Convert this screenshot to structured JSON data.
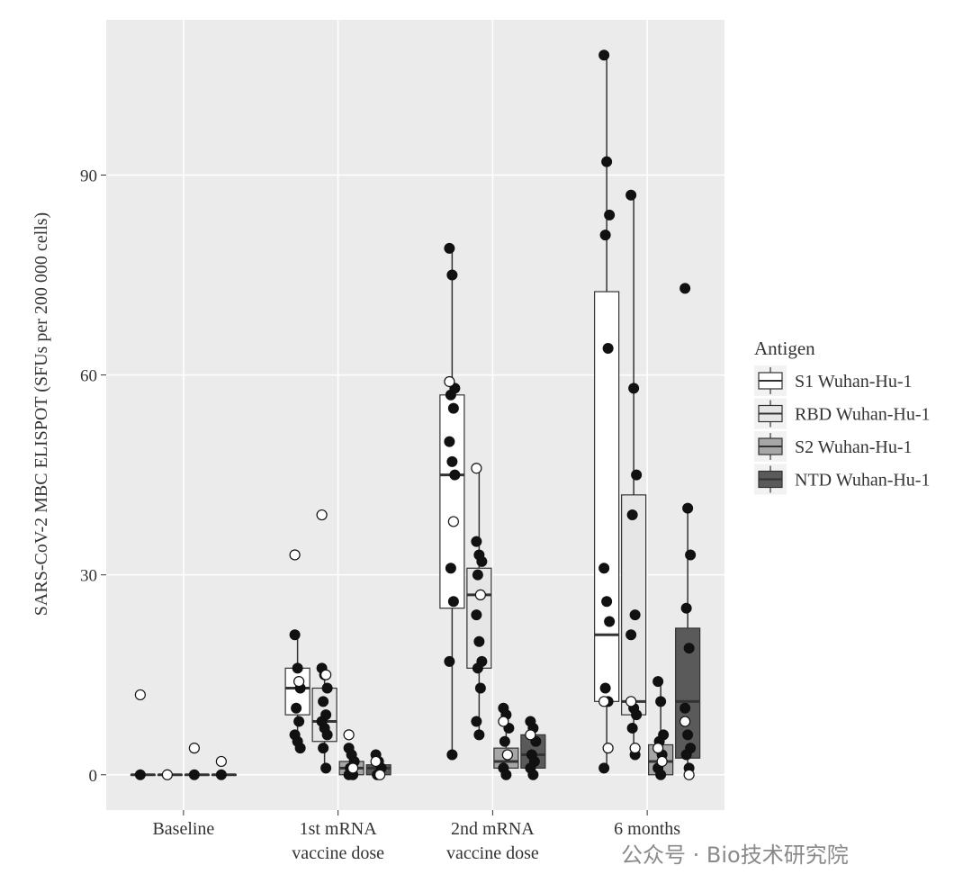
{
  "chart_data": {
    "type": "box",
    "ylabel": "SARS-CoV-2 MBC ELISPOT (SFUs per 200 000 cells)",
    "categories": [
      "Baseline",
      "1st mRNA vaccine dose",
      "2nd mRNA vaccine dose",
      "6 months"
    ],
    "ylim": [
      -5.3,
      113.3
    ],
    "yticks": [
      0,
      30,
      60,
      90
    ],
    "grid": true,
    "legend_title": "Antigen",
    "legend_position": "right",
    "series": [
      {
        "name": "S1 Wuhan-Hu-1",
        "color": "#ffffff",
        "boxes": [
          {
            "min": 0,
            "q1": 0,
            "median": 0,
            "q3": 0,
            "max": 0,
            "points": [
              0
            ],
            "open_points": [
              12
            ]
          },
          {
            "min": 4,
            "q1": 9,
            "median": 13,
            "q3": 16,
            "max": 21,
            "points": [
              21,
              16,
              13,
              10,
              8,
              6,
              5,
              4
            ],
            "open_points": [
              33,
              14
            ]
          },
          {
            "min": 3,
            "q1": 25,
            "median": 45,
            "q3": 57,
            "max": 79,
            "points": [
              79,
              75,
              58,
              57,
              55,
              50,
              47,
              45,
              31,
              26,
              17,
              3
            ],
            "open_points": [
              59,
              38
            ]
          },
          {
            "min": 1,
            "q1": 11,
            "median": 21,
            "q3": 72.5,
            "max": 108,
            "points": [
              108,
              92,
              84,
              81,
              64,
              31,
              26,
              23,
              13,
              11,
              1
            ],
            "open_points": [
              11,
              4
            ]
          }
        ]
      },
      {
        "name": "RBD Wuhan-Hu-1",
        "color": "#e6e6e6",
        "boxes": [
          {
            "min": 0,
            "q1": 0,
            "median": 0,
            "q3": 0,
            "max": 0,
            "points": [],
            "open_points": [
              0
            ]
          },
          {
            "min": 1,
            "q1": 5,
            "median": 8,
            "q3": 13,
            "max": 16,
            "points": [
              16,
              15,
              13,
              11,
              9,
              8,
              7,
              6,
              4,
              1
            ],
            "open_points": [
              39,
              15
            ]
          },
          {
            "min": 6,
            "q1": 16,
            "median": 27,
            "q3": 31,
            "max": 46,
            "points": [
              35,
              33,
              32,
              30,
              27,
              24,
              20,
              17,
              16,
              13,
              8,
              6
            ],
            "open_points": [
              46,
              27
            ]
          },
          {
            "min": 3,
            "q1": 9,
            "median": 11,
            "q3": 42,
            "max": 87,
            "points": [
              87,
              58,
              45,
              39,
              24,
              21,
              10,
              9,
              7,
              3
            ],
            "open_points": [
              11,
              4
            ]
          }
        ]
      },
      {
        "name": "S2 Wuhan-Hu-1",
        "color": "#a6a6a6",
        "boxes": [
          {
            "min": 0,
            "q1": 0,
            "median": 0,
            "q3": 0,
            "max": 0,
            "points": [
              0
            ],
            "open_points": [
              4
            ]
          },
          {
            "min": 0,
            "q1": 0,
            "median": 1,
            "q3": 2,
            "max": 4,
            "points": [
              4,
              3,
              2,
              1,
              0,
              0
            ],
            "open_points": [
              6,
              1
            ]
          },
          {
            "min": 0,
            "q1": 1,
            "median": 2,
            "q3": 4,
            "max": 10,
            "points": [
              10,
              9,
              7,
              5,
              3,
              1,
              0
            ],
            "open_points": [
              8,
              3
            ]
          },
          {
            "min": 0,
            "q1": 0,
            "median": 2,
            "q3": 4.5,
            "max": 14,
            "points": [
              14,
              11,
              6,
              5,
              3,
              1,
              0
            ],
            "open_points": [
              4,
              2
            ]
          }
        ]
      },
      {
        "name": "NTD Wuhan-Hu-1",
        "color": "#5a5a5a",
        "boxes": [
          {
            "min": 0,
            "q1": 0,
            "median": 0,
            "q3": 0,
            "max": 0,
            "points": [
              0
            ],
            "open_points": [
              2
            ]
          },
          {
            "min": 0,
            "q1": 0,
            "median": 1,
            "q3": 1.5,
            "max": 3,
            "points": [
              3,
              2,
              1,
              0
            ],
            "open_points": [
              2,
              0
            ]
          },
          {
            "min": 0,
            "q1": 1,
            "median": 3,
            "q3": 6,
            "max": 8,
            "points": [
              8,
              7,
              5,
              3,
              2,
              1,
              0
            ],
            "open_points": [
              6
            ]
          },
          {
            "min": 0,
            "q1": 2.5,
            "median": 11,
            "q3": 22,
            "max": 40,
            "points": [
              73,
              40,
              33,
              25,
              19,
              10,
              6,
              4,
              3,
              1
            ],
            "open_points": [
              8,
              0
            ]
          }
        ]
      }
    ]
  },
  "watermark": "公众号 · Bio技术研究院"
}
